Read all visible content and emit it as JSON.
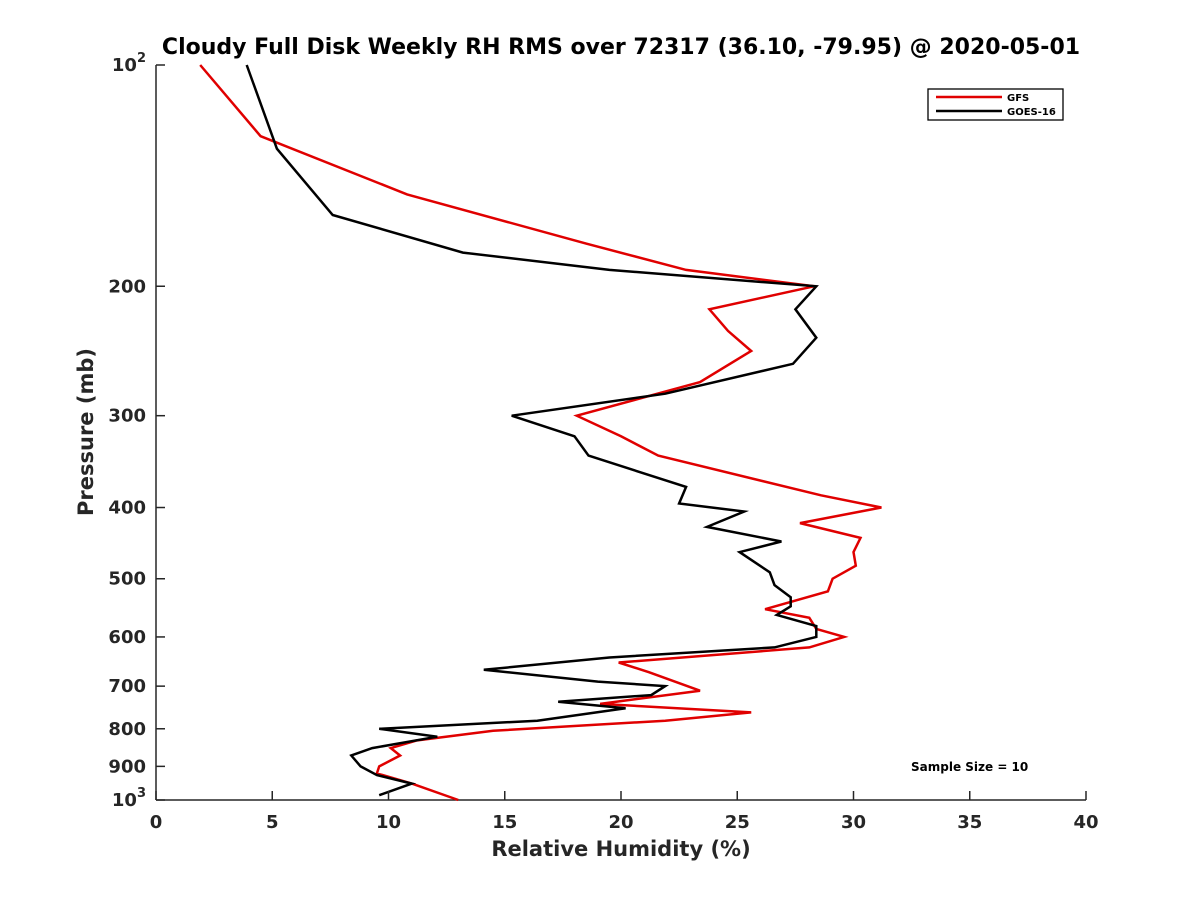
{
  "chart_data": {
    "type": "line",
    "title": "Cloudy Full Disk Weekly RH RMS over 72317 (36.10, -79.95) @ 2020-05-01",
    "xlabel": "Relative Humidity (%)",
    "ylabel": "Pressure (mb)",
    "xlim": [
      0,
      40
    ],
    "ylim": [
      100,
      1000
    ],
    "y_scale": "log",
    "y_reversed": true,
    "x_ticks": [
      "0",
      "5",
      "10",
      "15",
      "20",
      "25",
      "30",
      "35",
      "40"
    ],
    "y_ticks": [
      {
        "value": 100,
        "base": "10",
        "exp": "2",
        "label": ""
      },
      {
        "value": 200,
        "base": "",
        "exp": "",
        "label": "200"
      },
      {
        "value": 300,
        "base": "",
        "exp": "",
        "label": "300"
      },
      {
        "value": 400,
        "base": "",
        "exp": "",
        "label": "400"
      },
      {
        "value": 500,
        "base": "",
        "exp": "",
        "label": "500"
      },
      {
        "value": 600,
        "base": "",
        "exp": "",
        "label": "600"
      },
      {
        "value": 700,
        "base": "",
        "exp": "",
        "label": "700"
      },
      {
        "value": 800,
        "base": "",
        "exp": "",
        "label": "800"
      },
      {
        "value": 900,
        "base": "",
        "exp": "",
        "label": "900"
      },
      {
        "value": 1000,
        "base": "10",
        "exp": "3",
        "label": ""
      }
    ],
    "grid": false,
    "legend_position": "top-right",
    "annotation": "Sample Size = 10",
    "series": [
      {
        "name": "GFS",
        "color": "#e00000",
        "points": [
          [
            1.9,
            100
          ],
          [
            4.5,
            125
          ],
          [
            10.8,
            150
          ],
          [
            18.5,
            175
          ],
          [
            22.8,
            190
          ],
          [
            28.3,
            200
          ],
          [
            23.8,
            215
          ],
          [
            24.6,
            230
          ],
          [
            25.6,
            245
          ],
          [
            23.4,
            270
          ],
          [
            18.1,
            300
          ],
          [
            20.0,
            320
          ],
          [
            21.6,
            340
          ],
          [
            28.6,
            385
          ],
          [
            31.2,
            400
          ],
          [
            27.7,
            420
          ],
          [
            30.3,
            440
          ],
          [
            30.0,
            460
          ],
          [
            30.1,
            480
          ],
          [
            29.1,
            500
          ],
          [
            28.9,
            520
          ],
          [
            26.2,
            550
          ],
          [
            28.1,
            565
          ],
          [
            28.4,
            585
          ],
          [
            29.6,
            600
          ],
          [
            28.1,
            620
          ],
          [
            19.9,
            650
          ],
          [
            21.2,
            670
          ],
          [
            23.4,
            710
          ],
          [
            19.1,
            740
          ],
          [
            25.6,
            760
          ],
          [
            21.9,
            780
          ],
          [
            14.5,
            805
          ],
          [
            11.2,
            830
          ],
          [
            10.1,
            850
          ],
          [
            10.5,
            870
          ],
          [
            9.6,
            900
          ],
          [
            9.5,
            920
          ],
          [
            11.0,
            950
          ],
          [
            13.0,
            1000
          ]
        ]
      },
      {
        "name": "GOES-16",
        "color": "#000000",
        "points": [
          [
            3.9,
            100
          ],
          [
            5.2,
            130
          ],
          [
            7.6,
            160
          ],
          [
            13.2,
            180
          ],
          [
            19.5,
            190
          ],
          [
            28.4,
            200
          ],
          [
            27.5,
            215
          ],
          [
            28.4,
            235
          ],
          [
            27.4,
            255
          ],
          [
            21.9,
            280
          ],
          [
            15.3,
            300
          ],
          [
            18.0,
            320
          ],
          [
            18.6,
            340
          ],
          [
            22.8,
            375
          ],
          [
            22.5,
            395
          ],
          [
            25.3,
            405
          ],
          [
            23.7,
            425
          ],
          [
            26.9,
            445
          ],
          [
            25.1,
            460
          ],
          [
            26.4,
            490
          ],
          [
            26.6,
            510
          ],
          [
            27.3,
            530
          ],
          [
            27.3,
            545
          ],
          [
            26.7,
            560
          ],
          [
            28.4,
            580
          ],
          [
            28.4,
            600
          ],
          [
            26.6,
            620
          ],
          [
            19.5,
            640
          ],
          [
            14.1,
            665
          ],
          [
            19.0,
            690
          ],
          [
            21.9,
            700
          ],
          [
            21.3,
            720
          ],
          [
            17.3,
            735
          ],
          [
            20.2,
            750
          ],
          [
            16.4,
            780
          ],
          [
            9.6,
            800
          ],
          [
            12.1,
            820
          ],
          [
            9.3,
            850
          ],
          [
            8.4,
            870
          ],
          [
            8.8,
            900
          ],
          [
            9.5,
            925
          ],
          [
            11.0,
            950
          ],
          [
            9.6,
            985
          ]
        ]
      }
    ]
  }
}
